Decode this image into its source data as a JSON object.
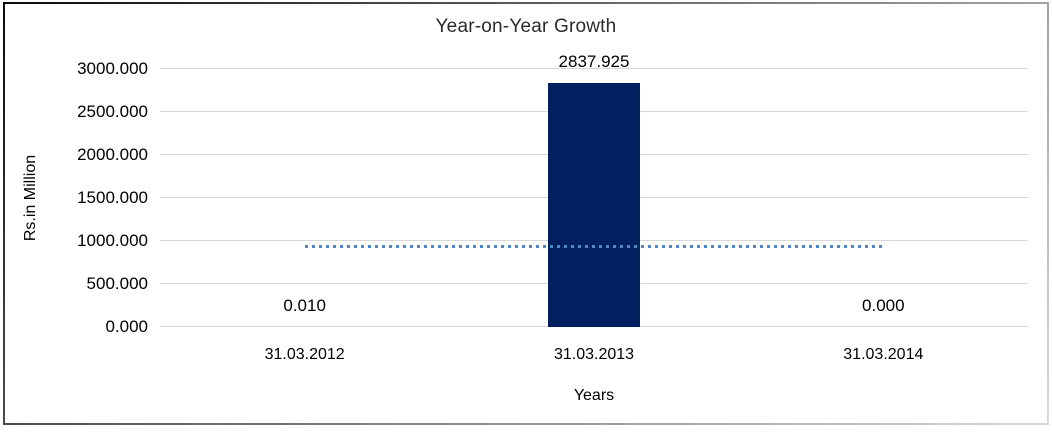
{
  "chart_data": {
    "type": "bar",
    "title": "Year-on-Year Growth",
    "xlabel": "Years",
    "ylabel": "Rs.in Million",
    "categories": [
      "31.03.2012",
      "31.03.2013",
      "31.03.2014"
    ],
    "values": [
      0.01,
      2837.925,
      0.0
    ],
    "data_labels": [
      "0.010",
      "2837.925",
      "0.000"
    ],
    "yticks": [
      "0.000",
      "500.000",
      "1000.000",
      "1500.000",
      "2000.000",
      "2500.000",
      "3000.000"
    ],
    "ylim": [
      0,
      3000
    ],
    "grid": "horizontal",
    "legend": "none",
    "bar_color": "#002060",
    "gridline_color": "#d9d9d9",
    "trendline": {
      "type": "linear",
      "style": "dotted",
      "color": "#4f86c6",
      "y_value": 946,
      "span": "first-to-last-category"
    }
  }
}
